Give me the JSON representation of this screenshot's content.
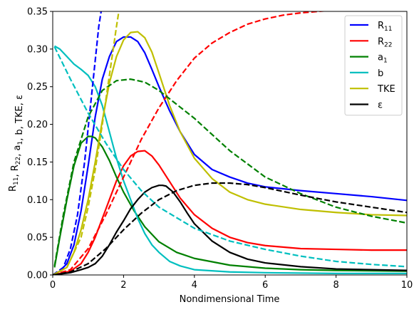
{
  "chart_data": {
    "type": "line",
    "title": "",
    "xlabel": "Nondimensional Time",
    "ylabel": "R11, R22, a1, b, TKE, ε",
    "xlim": [
      0,
      10
    ],
    "ylim": [
      0,
      0.35
    ],
    "xticks": [
      "0",
      "2",
      "4",
      "6",
      "8",
      "10"
    ],
    "yticks": [
      "0.00",
      "0.05",
      "0.10",
      "0.15",
      "0.20",
      "0.25",
      "0.30",
      "0.35"
    ],
    "legend_position": "top-right",
    "grid": false,
    "series": [
      {
        "name": "R11",
        "name_main": "R",
        "name_sub": "11",
        "color": "#0000ff",
        "style": "solid",
        "x": [
          0,
          0.2,
          0.4,
          0.6,
          0.8,
          1.0,
          1.2,
          1.4,
          1.6,
          1.8,
          2.0,
          2.2,
          2.4,
          2.6,
          2.8,
          3.0,
          3.3,
          3.6,
          4.0,
          4.5,
          5.0,
          5.5,
          6.0,
          7.0,
          8.0,
          9.0,
          10.0
        ],
        "y": [
          0.0,
          0.005,
          0.015,
          0.04,
          0.085,
          0.145,
          0.21,
          0.26,
          0.29,
          0.31,
          0.316,
          0.316,
          0.31,
          0.295,
          0.273,
          0.25,
          0.218,
          0.19,
          0.16,
          0.14,
          0.13,
          0.122,
          0.117,
          0.112,
          0.108,
          0.104,
          0.099
        ]
      },
      {
        "name": "R22",
        "name_main": "R",
        "name_sub": "22",
        "color": "#ff0000",
        "style": "solid",
        "x": [
          0,
          0.5,
          0.8,
          1.0,
          1.2,
          1.4,
          1.6,
          1.8,
          2.0,
          2.2,
          2.4,
          2.6,
          2.8,
          3.0,
          3.3,
          3.6,
          4.0,
          4.5,
          5.0,
          5.5,
          6.0,
          7.0,
          8.0,
          9.0,
          10.0
        ],
        "y": [
          0.0,
          0.005,
          0.015,
          0.03,
          0.05,
          0.075,
          0.1,
          0.125,
          0.145,
          0.158,
          0.164,
          0.165,
          0.158,
          0.146,
          0.124,
          0.102,
          0.08,
          0.062,
          0.05,
          0.043,
          0.039,
          0.035,
          0.034,
          0.033,
          0.033
        ]
      },
      {
        "name": "a1",
        "name_main": "a",
        "name_sub": "1",
        "color": "#008000",
        "style": "solid",
        "x": [
          0.05,
          0.2,
          0.4,
          0.6,
          0.8,
          1.0,
          1.1,
          1.2,
          1.4,
          1.6,
          1.8,
          2.0,
          2.3,
          2.6,
          3.0,
          3.5,
          4.0,
          5.0,
          6.0,
          7.0,
          8.0,
          10.0
        ],
        "y": [
          0.01,
          0.05,
          0.1,
          0.145,
          0.175,
          0.184,
          0.184,
          0.182,
          0.17,
          0.152,
          0.13,
          0.11,
          0.085,
          0.064,
          0.044,
          0.03,
          0.022,
          0.013,
          0.009,
          0.007,
          0.006,
          0.005
        ]
      },
      {
        "name": "b",
        "color": "#00bfbf",
        "style": "solid",
        "x": [
          0.05,
          0.2,
          0.4,
          0.6,
          0.8,
          1.0,
          1.2,
          1.4,
          1.6,
          1.8,
          2.0,
          2.2,
          2.4,
          2.6,
          2.8,
          3.0,
          3.3,
          3.6,
          4.0,
          5.0,
          6.0,
          8.0,
          10.0
        ],
        "y": [
          0.304,
          0.3,
          0.29,
          0.28,
          0.273,
          0.265,
          0.25,
          0.225,
          0.19,
          0.155,
          0.125,
          0.1,
          0.075,
          0.055,
          0.04,
          0.03,
          0.018,
          0.012,
          0.007,
          0.004,
          0.003,
          0.002,
          0.002
        ]
      },
      {
        "name": "TKE",
        "color": "#bfbf00",
        "style": "solid",
        "x": [
          0,
          0.4,
          0.6,
          0.8,
          1.0,
          1.2,
          1.4,
          1.6,
          1.8,
          2.0,
          2.2,
          2.4,
          2.6,
          2.8,
          3.0,
          3.3,
          3.6,
          4.0,
          4.5,
          5.0,
          5.5,
          6.0,
          7.0,
          8.0,
          9.0,
          10.0
        ],
        "y": [
          0.0,
          0.01,
          0.03,
          0.06,
          0.1,
          0.15,
          0.205,
          0.255,
          0.29,
          0.312,
          0.322,
          0.323,
          0.315,
          0.296,
          0.268,
          0.225,
          0.19,
          0.155,
          0.128,
          0.11,
          0.1,
          0.094,
          0.087,
          0.083,
          0.08,
          0.079
        ]
      },
      {
        "name": "ε",
        "color": "#000000",
        "style": "solid",
        "x": [
          0,
          0.5,
          0.8,
          1.0,
          1.2,
          1.4,
          1.6,
          1.8,
          2.0,
          2.2,
          2.4,
          2.6,
          2.8,
          3.0,
          3.1,
          3.2,
          3.4,
          3.6,
          3.8,
          4.0,
          4.5,
          5.0,
          5.5,
          6.0,
          7.0,
          8.0,
          9.0,
          10.0
        ],
        "y": [
          0.0,
          0.003,
          0.007,
          0.01,
          0.015,
          0.025,
          0.04,
          0.057,
          0.072,
          0.088,
          0.1,
          0.11,
          0.116,
          0.119,
          0.119,
          0.118,
          0.11,
          0.097,
          0.082,
          0.068,
          0.045,
          0.03,
          0.021,
          0.016,
          0.011,
          0.008,
          0.007,
          0.006
        ]
      },
      {
        "name": "",
        "color": "#0000ff",
        "style": "dashed",
        "x": [
          0,
          0.3,
          0.5,
          0.7,
          0.9,
          1.1,
          1.3,
          1.4
        ],
        "y": [
          0.0,
          0.01,
          0.035,
          0.08,
          0.15,
          0.24,
          0.33,
          0.36
        ]
      },
      {
        "name": "",
        "color": "#ff0000",
        "style": "dashed",
        "x": [
          0,
          0.5,
          1.0,
          1.5,
          2.0,
          2.5,
          3.0,
          3.5,
          4.0,
          4.5,
          5.0,
          5.5,
          6.0,
          6.5,
          7.0,
          7.5,
          7.8
        ],
        "y": [
          0.0,
          0.007,
          0.035,
          0.08,
          0.13,
          0.18,
          0.222,
          0.258,
          0.288,
          0.308,
          0.322,
          0.333,
          0.34,
          0.345,
          0.348,
          0.35,
          0.351
        ]
      },
      {
        "name": "",
        "color": "#008000",
        "style": "dashed",
        "x": [
          0.05,
          0.3,
          0.6,
          1.0,
          1.4,
          1.8,
          2.2,
          2.6,
          3.0,
          4.0,
          5.0,
          6.0,
          7.0,
          8.0,
          9.0,
          10.0
        ],
        "y": [
          0.012,
          0.08,
          0.15,
          0.21,
          0.245,
          0.258,
          0.26,
          0.256,
          0.245,
          0.208,
          0.165,
          0.13,
          0.108,
          0.09,
          0.078,
          0.069
        ]
      },
      {
        "name": "",
        "color": "#00bfbf",
        "style": "dashed",
        "x": [
          0.05,
          0.5,
          1.0,
          1.5,
          2.0,
          2.5,
          3.0,
          4.0,
          5.0,
          6.0,
          7.0,
          8.0,
          9.0,
          10.0
        ],
        "y": [
          0.303,
          0.26,
          0.215,
          0.175,
          0.14,
          0.112,
          0.09,
          0.062,
          0.045,
          0.034,
          0.025,
          0.018,
          0.014,
          0.011
        ]
      },
      {
        "name": "",
        "color": "#bfbf00",
        "style": "dashed",
        "x": [
          0,
          0.4,
          0.8,
          1.0,
          1.2,
          1.4,
          1.6,
          1.8,
          1.9
        ],
        "y": [
          0.0,
          0.01,
          0.05,
          0.09,
          0.14,
          0.2,
          0.265,
          0.33,
          0.36
        ]
      },
      {
        "name": "",
        "color": "#000000",
        "style": "dashed",
        "x": [
          0,
          0.5,
          1.0,
          1.5,
          2.0,
          2.5,
          3.0,
          3.5,
          4.0,
          4.5,
          5.0,
          5.5,
          6.0,
          7.0,
          8.0,
          9.0,
          10.0
        ],
        "y": [
          0.0,
          0.004,
          0.015,
          0.035,
          0.06,
          0.082,
          0.1,
          0.112,
          0.119,
          0.122,
          0.122,
          0.12,
          0.116,
          0.106,
          0.097,
          0.09,
          0.083
        ]
      }
    ]
  }
}
